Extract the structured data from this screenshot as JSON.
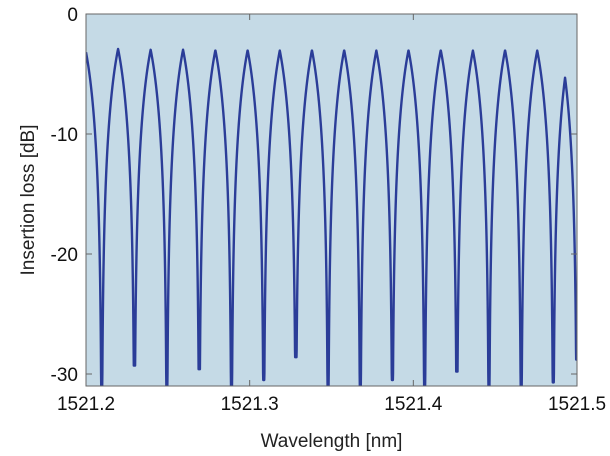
{
  "chart_data": {
    "type": "line",
    "title": "",
    "xlabel": "Wavelength [nm]",
    "ylabel": "Insertion loss [dB]",
    "xlim": [
      1521.2,
      1521.5
    ],
    "ylim": [
      -31,
      0
    ],
    "xticks": [
      1521.2,
      1521.3,
      1521.4,
      1521.5
    ],
    "xtick_labels": [
      "1521.2",
      "1521.3",
      "1521.4",
      "1521.5"
    ],
    "yticks": [
      0,
      -10,
      -20,
      -30
    ],
    "ytick_labels": [
      "0",
      "-10",
      "-20",
      "-30"
    ],
    "grid": false,
    "legend": "none",
    "colors": {
      "plot_background": "#c5dae6",
      "line": "#2b3d98",
      "axes": "#666666"
    },
    "series": [
      {
        "notches": [
          {
            "x": 1521.2096,
            "depth": -31
          },
          {
            "x": 1521.2296,
            "depth": -29.3
          },
          {
            "x": 1521.2494,
            "depth": -31
          },
          {
            "x": 1521.2692,
            "depth": -29.6
          },
          {
            "x": 1521.2889,
            "depth": -31
          },
          {
            "x": 1521.3086,
            "depth": -30.5
          },
          {
            "x": 1521.3282,
            "depth": -28.6
          },
          {
            "x": 1521.3479,
            "depth": -31
          },
          {
            "x": 1521.3676,
            "depth": -31
          },
          {
            "x": 1521.3872,
            "depth": -30.5
          },
          {
            "x": 1521.4069,
            "depth": -31
          },
          {
            "x": 1521.4266,
            "depth": -29.8
          },
          {
            "x": 1521.4462,
            "depth": -31
          },
          {
            "x": 1521.4659,
            "depth": -31
          },
          {
            "x": 1521.4855,
            "depth": -30.7
          },
          {
            "x": 1521.4999,
            "depth": -28.8
          }
        ]
      }
    ]
  }
}
